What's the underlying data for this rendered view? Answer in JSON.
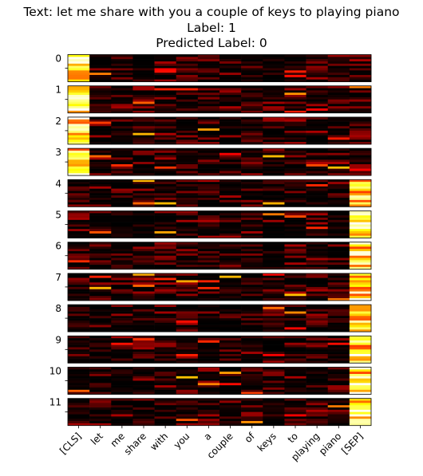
{
  "header": {
    "text_line": "Text: let me share with you a couple of keys to playing piano",
    "label_line": "Label: 1",
    "predicted_line": "Predicted Label: 0"
  },
  "chart_data": {
    "type": "heatmap",
    "colormap": "hot",
    "tokens": [
      "[CLS]",
      "let",
      "me",
      "share",
      "with",
      "you",
      "a",
      "couple",
      "of",
      "keys",
      "to",
      "playing",
      "piano",
      "[SEP]"
    ],
    "layers": [
      "0",
      "1",
      "2",
      "3",
      "4",
      "5",
      "6",
      "7",
      "8",
      "9",
      "10",
      "11"
    ],
    "rows_per_layer": 12,
    "dominant_columns": {
      "0": "[CLS]",
      "1": "[CLS]",
      "2": "[CLS]",
      "3": "[CLS]",
      "4": "[SEP]",
      "5": "[SEP]",
      "6": "[SEP]",
      "7": "[SEP]",
      "8": "[SEP]",
      "9": "[SEP]",
      "10": "[SEP]",
      "11": "[SEP]"
    },
    "value_range": [
      0,
      1
    ]
  }
}
